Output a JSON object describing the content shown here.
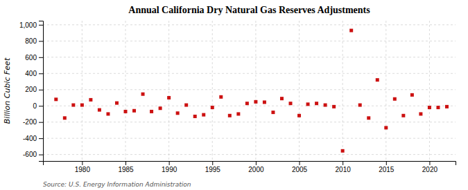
{
  "chart_data": {
    "type": "scatter",
    "title": "Annual California Dry Natural Gas Reserves Adjustments",
    "ylabel": "Billion Cubic Feet",
    "source": "Source: U.S. Energy Information Administration",
    "x": [
      1977,
      1978,
      1979,
      1980,
      1981,
      1982,
      1983,
      1984,
      1985,
      1986,
      1987,
      1988,
      1989,
      1990,
      1991,
      1992,
      1993,
      1994,
      1995,
      1996,
      1997,
      1998,
      1999,
      2000,
      2001,
      2002,
      2003,
      2004,
      2005,
      2006,
      2007,
      2008,
      2009,
      2010,
      2011,
      2012,
      2013,
      2014,
      2015,
      2016,
      2017,
      2018,
      2019,
      2020,
      2021,
      2022
    ],
    "values": [
      80,
      -150,
      10,
      10,
      75,
      -50,
      -100,
      35,
      -70,
      -60,
      145,
      -70,
      -30,
      100,
      -90,
      10,
      -130,
      -110,
      -20,
      110,
      -120,
      -100,
      30,
      50,
      45,
      -80,
      90,
      30,
      -120,
      20,
      30,
      10,
      -10,
      -555,
      930,
      10,
      -150,
      320,
      -270,
      85,
      -120,
      135,
      -100,
      -20,
      -20,
      -10
    ],
    "color": "#cc1111",
    "marker": "square",
    "xlim": [
      1975.5,
      2023
    ],
    "xticks": [
      1980,
      1985,
      1990,
      1995,
      2000,
      2005,
      2010,
      2015,
      2020
    ],
    "ylim": [
      -680,
      1050
    ],
    "yticks": [
      -600,
      -400,
      -200,
      0,
      200,
      400,
      600,
      800,
      {
        "value": 1000,
        "label": "1,000"
      }
    ],
    "grid": true
  }
}
